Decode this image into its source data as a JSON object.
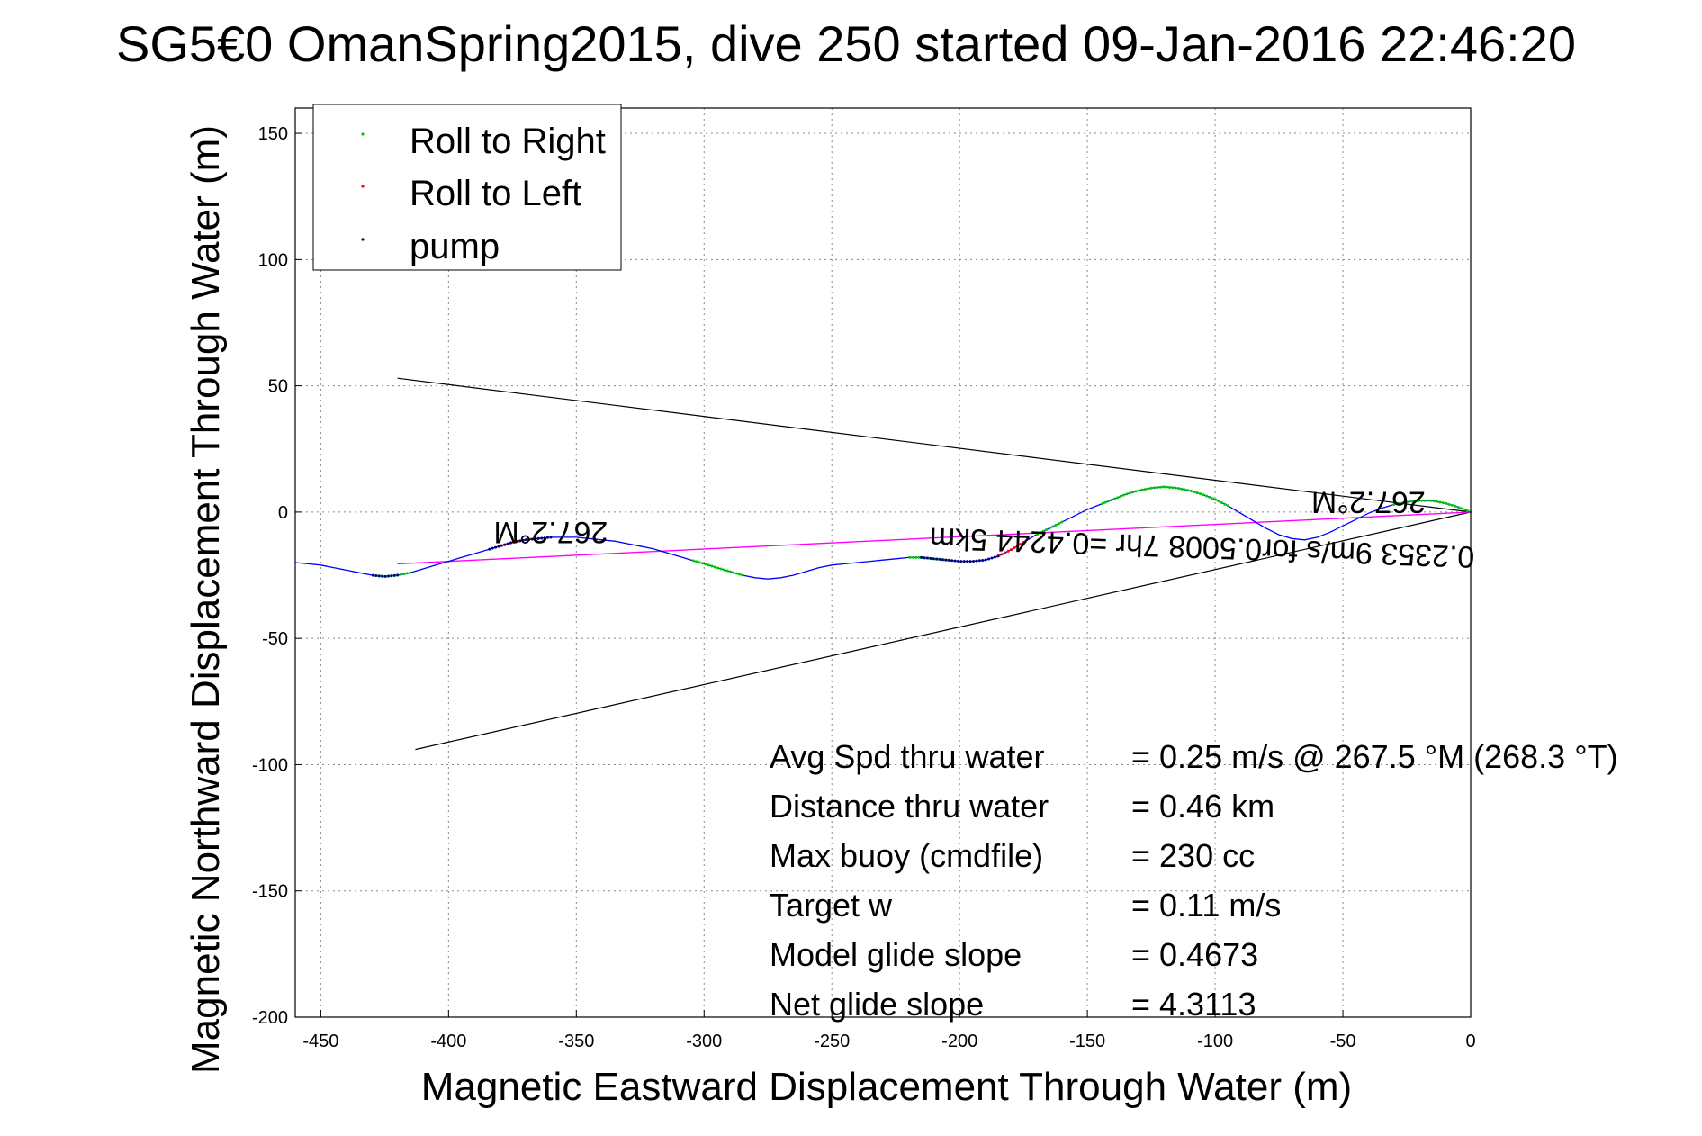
{
  "chart_data": {
    "type": "scatter",
    "title": "SG5€0 OmanSpring2015, dive 250 started 09-Jan-2016 22:46:20",
    "xlabel": "Magnetic Eastward Displacement Through Water (m)",
    "ylabel": "Magnetic Northward Displacement Through Water (m)",
    "xlim": [
      -460,
      0
    ],
    "ylim": [
      -200,
      160
    ],
    "xticks": [
      "-450",
      "-400",
      "-350",
      "-300",
      "-250",
      "-200",
      "-150",
      "-100",
      "-50",
      "0"
    ],
    "yticks": [
      "150",
      "100",
      "50",
      "0",
      "-50",
      "-100",
      "-150",
      "-200"
    ],
    "xtick_values": [
      -450,
      -400,
      -350,
      -300,
      -250,
      -200,
      -150,
      -100,
      -50,
      0
    ],
    "ytick_values": [
      150,
      100,
      50,
      0,
      -50,
      -100,
      -150,
      -200
    ],
    "grid": true,
    "legend_position": "top-left",
    "legend": [
      {
        "label": "Roll to Right",
        "color": "#00cc00"
      },
      {
        "label": "Roll to Left",
        "color": "#ff0000"
      },
      {
        "label": "pump",
        "color": "#000080"
      }
    ],
    "track": {
      "color": "#0000ff",
      "x": [
        0,
        -5,
        -10,
        -15,
        -20,
        -25,
        -30,
        -35,
        -40,
        -45,
        -50,
        -55,
        -60,
        -65,
        -70,
        -75,
        -80,
        -85,
        -90,
        -95,
        -100,
        -105,
        -110,
        -115,
        -120,
        -125,
        -130,
        -135,
        -140,
        -145,
        -150,
        -155,
        -160,
        -165,
        -170,
        -175,
        -180,
        -185,
        -190,
        -195,
        -200,
        -205,
        -210,
        -215,
        -220,
        -225,
        -230,
        -235,
        -240,
        -245,
        -250,
        -255,
        -260,
        -265,
        -270,
        -275,
        -280,
        -285,
        -290,
        -295,
        -300,
        -305,
        -310,
        -315,
        -320,
        -325,
        -330,
        -335,
        -340,
        -345,
        -350,
        -355,
        -360,
        -365,
        -370,
        -375,
        -380,
        -385,
        -390,
        -395,
        -400,
        -405,
        -410,
        -415,
        -420,
        -425,
        -430,
        -435,
        -440,
        -445,
        -450,
        -455,
        -460
      ],
      "y": [
        0,
        2,
        3.5,
        4.5,
        4.5,
        4,
        3,
        1.5,
        -0.5,
        -3,
        -5.5,
        -8,
        -10,
        -11,
        -10.5,
        -9,
        -6.5,
        -3.5,
        -0.5,
        2.5,
        5,
        7,
        8.5,
        9.5,
        10,
        9.5,
        8.5,
        7,
        5,
        3,
        1,
        -1.5,
        -4,
        -6.5,
        -9,
        -12,
        -15,
        -17.5,
        -19,
        -19.5,
        -19.5,
        -19,
        -18.5,
        -18,
        -18,
        -18.5,
        -19,
        -19.5,
        -20,
        -20.5,
        -21,
        -22,
        -23.5,
        -25,
        -26,
        -26.5,
        -26,
        -25,
        -23.5,
        -22,
        -20.5,
        -19,
        -17.5,
        -16,
        -14.5,
        -13.5,
        -12.5,
        -11.5,
        -11,
        -10.5,
        -10,
        -10,
        -10,
        -10.5,
        -11,
        -12,
        -13.5,
        -15,
        -16.5,
        -18,
        -19.5,
        -21,
        -22.5,
        -24,
        -25,
        -25.5,
        -25,
        -24,
        -23,
        -22,
        -21,
        -20.5,
        -20
      ]
    },
    "right_roll": [
      {
        "x0": 0,
        "x1": -30
      },
      {
        "x0": -95,
        "x1": -145
      },
      {
        "x0": -160,
        "x1": -170
      },
      {
        "x0": -205,
        "x1": -220
      },
      {
        "x0": -285,
        "x1": -305
      },
      {
        "x0": -415,
        "x1": -430
      }
    ],
    "left_roll": [
      {
        "x0": -175,
        "x1": -185
      },
      {
        "x0": -365,
        "x1": -380
      }
    ],
    "pump": [
      {
        "x0": -185,
        "x1": -215
      },
      {
        "x0": -360,
        "x1": -385
      },
      {
        "x0": -420,
        "x1": -430
      }
    ],
    "mean_line": {
      "color": "#ff00ff",
      "x": [
        0,
        -420
      ],
      "y": [
        0,
        -20.5
      ]
    },
    "cone_lines": {
      "color": "#000000",
      "lines": [
        {
          "x": [
            0,
            -420
          ],
          "y": [
            0,
            53
          ]
        },
        {
          "x": [
            0,
            -413
          ],
          "y": [
            0,
            -94
          ]
        }
      ]
    },
    "annotations": [
      {
        "text": "267.2°M",
        "x": -360,
        "y": -4,
        "rotation": 180
      },
      {
        "text": "267.2°M",
        "x": -40,
        "y": 8,
        "rotation": 180
      },
      {
        "text": "0.2353 9m/s for0.5008 7hr =0.4244 5km",
        "x": -105,
        "y": -10,
        "rotation": 182
      }
    ],
    "stats": [
      {
        "label": "Avg Spd thru water",
        "value": "=  0.25 m/s @ 267.5 °M (268.3 °T)"
      },
      {
        "label": "Distance thru water",
        "value": "=  0.46 km"
      },
      {
        "label": "Max buoy (cmdfile)",
        "value": "= 230 cc"
      },
      {
        "label": "Target w",
        "value": "= 0.11 m/s"
      },
      {
        "label": "Model glide slope",
        "value": "= 0.4673"
      },
      {
        "label": "Net glide slope",
        "value": "= 4.3113"
      }
    ]
  }
}
